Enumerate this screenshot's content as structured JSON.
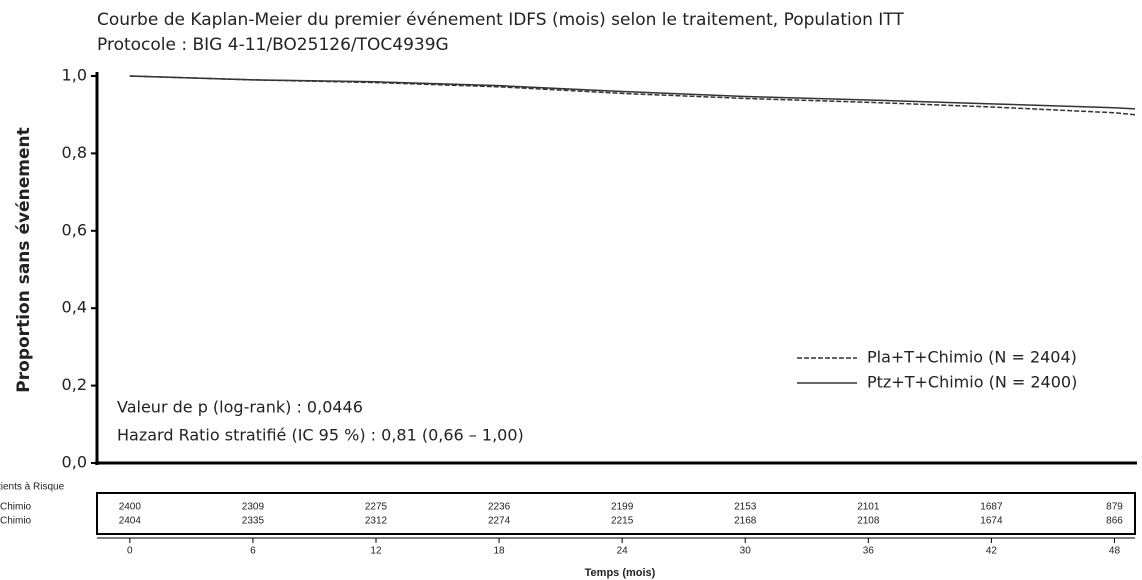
{
  "chart_data": {
    "type": "line",
    "title": "Courbe de Kaplan-Meier du premier événement IDFS (mois) selon le traitement, Population ITT",
    "subtitle": "Protocole : BIG 4-11/BO25126/TOC4939G",
    "y_label": "Proportion sans événement",
    "x_label": "Temps (mois)",
    "annotations": [
      "Valeur de p (log-rank) : 0,0446",
      "Hazard Ratio stratifié (IC 95 %) : 0,81 (0,66 – 1,00)"
    ],
    "x": [
      0,
      6,
      12,
      18,
      24,
      30,
      36,
      42,
      48,
      49
    ],
    "series": [
      {
        "name": "Pla+T+Chimio (N = 2404)",
        "color": "#333333",
        "dash": true,
        "values": [
          1,
          0.99,
          0.983,
          0.972,
          0.955,
          0.942,
          0.932,
          0.92,
          0.905,
          0.9
        ]
      },
      {
        "name": "Ptz+T+Chimio (N = 2400)",
        "color": "#333333",
        "dash": false,
        "values": [
          1,
          0.99,
          0.985,
          0.975,
          0.96,
          0.947,
          0.938,
          0.928,
          0.918,
          0.915
        ]
      }
    ],
    "xlim": [
      -1.6,
      49
    ],
    "ylim": [
      0,
      1
    ],
    "yticks": [
      {
        "value": 0,
        "label": "0,0"
      },
      {
        "value": 0.2,
        "label": "0,2"
      },
      {
        "value": 0.4,
        "label": "0,4"
      },
      {
        "value": 0.6,
        "label": "0,6"
      },
      {
        "value": 0.8,
        "label": "0,8"
      },
      {
        "value": 1,
        "label": "1,0"
      }
    ],
    "xticks": [
      0,
      6,
      12,
      18,
      24,
      30,
      36,
      42,
      48
    ],
    "risk_table": {
      "title": "tients à Risque",
      "rows": [
        {
          "label": "Chimio",
          "values": [
            2400,
            2309,
            2275,
            2236,
            2199,
            2153,
            2101,
            1687,
            879
          ]
        },
        {
          "label": "Chimio",
          "values": [
            2404,
            2335,
            2312,
            2274,
            2215,
            2168,
            2108,
            1674,
            866
          ]
        }
      ]
    }
  }
}
